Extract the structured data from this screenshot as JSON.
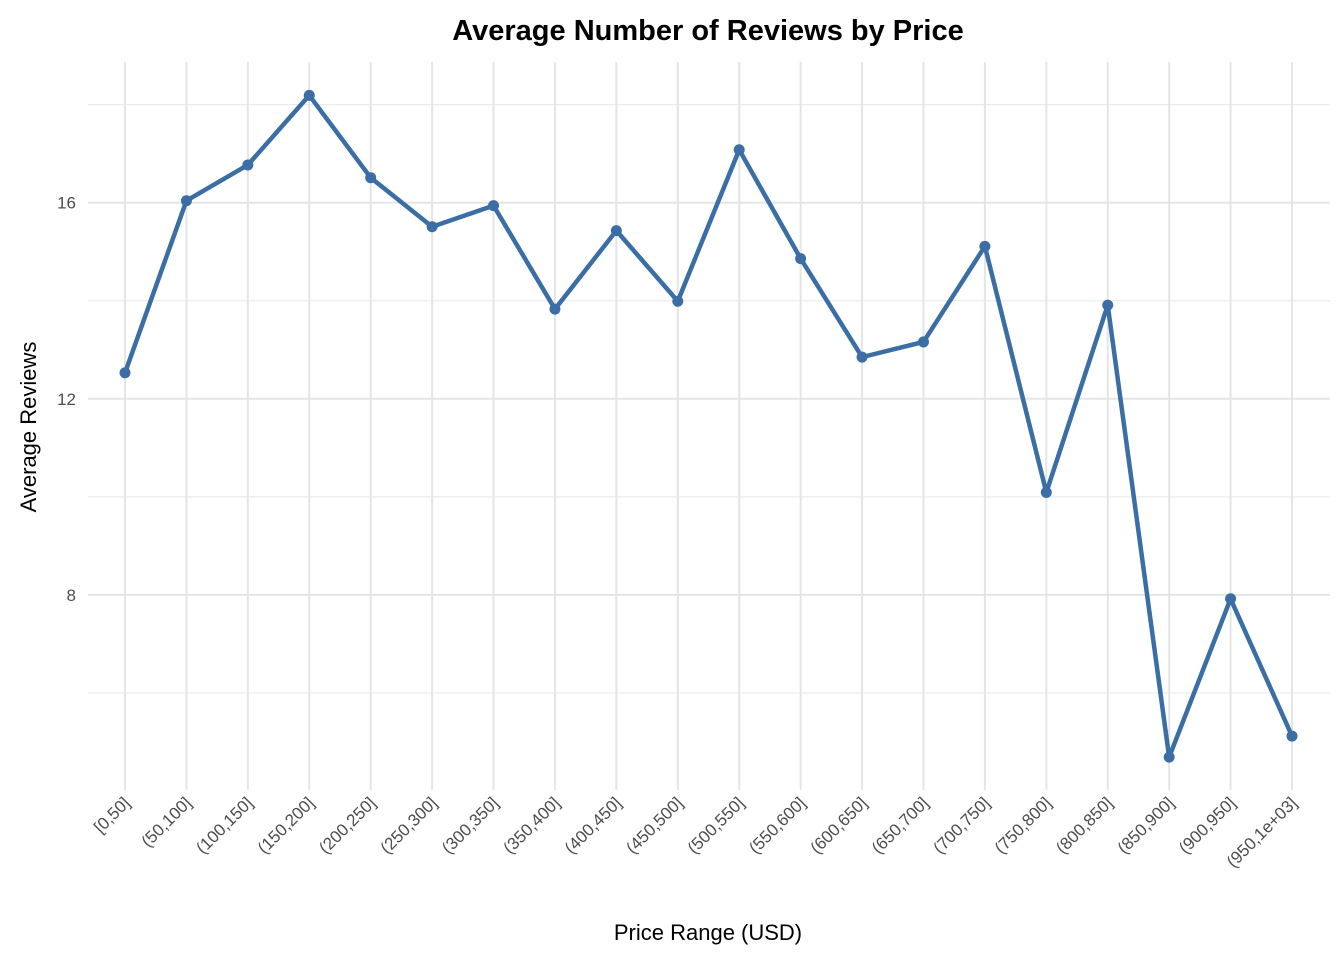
{
  "chart_data": {
    "type": "line",
    "title": "Average Number of Reviews by Price",
    "x_label": "Price Range (USD)",
    "y_label": "Average Reviews",
    "categories": [
      "[0,50]",
      "(50,100]",
      "(100,150]",
      "(150,200]",
      "(200,250]",
      "(250,300]",
      "(300,350]",
      "(350,400]",
      "(400,450]",
      "(450,500]",
      "(500,550]",
      "(550,600]",
      "(600,650]",
      "(650,700]",
      "(700,750]",
      "(750,800]",
      "(800,850]",
      "(850,900]",
      "(900,950]",
      "(950,1e+03]"
    ],
    "series": [
      {
        "name": "Average Reviews",
        "color": "#3a6ea5",
        "values": [
          12.53,
          16.04,
          16.77,
          18.19,
          16.51,
          15.51,
          15.94,
          13.83,
          15.43,
          13.99,
          17.08,
          14.86,
          12.85,
          13.16,
          15.11,
          10.09,
          13.91,
          4.69,
          7.92,
          5.12
        ]
      }
    ],
    "ylim": [
      4.02,
      18.87
    ],
    "yticks": [
      8,
      12,
      16
    ],
    "minor_yticks": [
      6,
      10,
      14,
      18
    ],
    "grid": true
  }
}
